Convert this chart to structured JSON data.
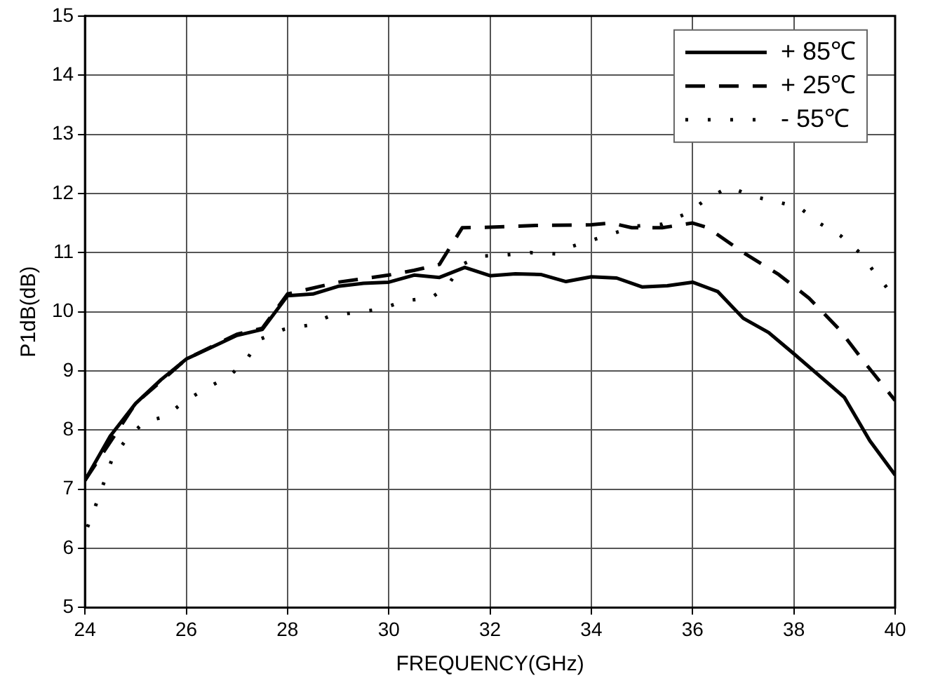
{
  "chart_data": {
    "type": "line",
    "xlabel": "FREQUENCY(GHz)",
    "ylabel": "P1dB(dB)",
    "xlim": [
      24,
      40
    ],
    "xticks": [
      24,
      26,
      28,
      30,
      32,
      34,
      36,
      38,
      40
    ],
    "ylim": [
      5,
      15
    ],
    "yticks": [
      5,
      6,
      7,
      8,
      9,
      10,
      11,
      12,
      13,
      14,
      15
    ],
    "grid": true,
    "legend": "top right",
    "marker": "none",
    "series": [
      {
        "name": "+ 85℃",
        "color": "#000000",
        "line_style": "solid",
        "x": [
          24,
          24.5,
          25,
          25.5,
          26,
          26.5,
          27,
          27.5,
          28,
          28.5,
          29,
          29.5,
          30,
          30.5,
          31,
          31.5,
          32,
          32.5,
          33,
          33.5,
          34,
          34.5,
          35,
          35.5,
          36,
          36.5,
          37,
          37.5,
          38,
          38.5,
          39,
          39.5,
          40
        ],
        "values": [
          7.15,
          7.9,
          8.45,
          8.85,
          9.2,
          9.4,
          9.6,
          9.7,
          10.27,
          10.3,
          10.43,
          10.48,
          10.5,
          10.62,
          10.58,
          10.75,
          10.61,
          10.64,
          10.63,
          10.51,
          10.59,
          10.57,
          10.42,
          10.44,
          10.5,
          10.34,
          9.89,
          9.65,
          9.29,
          8.92,
          8.55,
          7.82,
          7.24
        ]
      },
      {
        "name": "+ 25℃",
        "color": "#000000",
        "line_style": "dashed",
        "x": [
          24,
          25,
          26,
          27,
          27.5,
          28,
          29,
          30,
          30.5,
          31,
          31.45,
          32,
          32.9,
          34,
          34.4,
          34.8,
          35.4,
          36,
          36.3,
          37,
          37.7,
          38.3,
          38.9,
          39.4,
          40
        ],
        "values": [
          7.15,
          8.45,
          9.2,
          9.62,
          9.72,
          10.3,
          10.5,
          10.62,
          10.7,
          10.8,
          11.42,
          11.43,
          11.46,
          11.47,
          11.5,
          11.42,
          11.42,
          11.5,
          11.42,
          11.0,
          10.63,
          10.23,
          9.7,
          9.14,
          8.5
        ]
      },
      {
        "name": "- 55℃",
        "color": "#000000",
        "line_style": "dotted",
        "x": [
          24.05,
          24.2,
          24.36,
          24.53,
          24.82,
          25.19,
          25.57,
          25.96,
          26.4,
          26.85,
          27.18,
          27.47,
          27.92,
          28.4,
          28.87,
          29.38,
          29.86,
          30.33,
          30.83,
          31.15,
          31.45,
          31.8,
          32.3,
          32.8,
          33.3,
          33.6,
          34.9,
          35.4,
          35.9,
          36.27,
          36.72,
          37.2,
          37.7,
          38.1,
          38.5,
          38.93,
          39.3,
          39.6,
          39.9,
          40
        ],
        "values": [
          6.36,
          6.7,
          7.08,
          7.5,
          7.85,
          8.15,
          8.22,
          8.48,
          8.71,
          8.91,
          9.18,
          9.54,
          9.7,
          9.77,
          9.94,
          9.99,
          10.05,
          10.19,
          10.23,
          10.43,
          10.8,
          10.94,
          10.96,
          11.0,
          10.98,
          11.1,
          11.45,
          11.48,
          11.67,
          11.9,
          12.11,
          11.95,
          11.85,
          11.77,
          11.5,
          11.28,
          11.0,
          10.66,
          10.34,
          10.25
        ]
      }
    ]
  }
}
